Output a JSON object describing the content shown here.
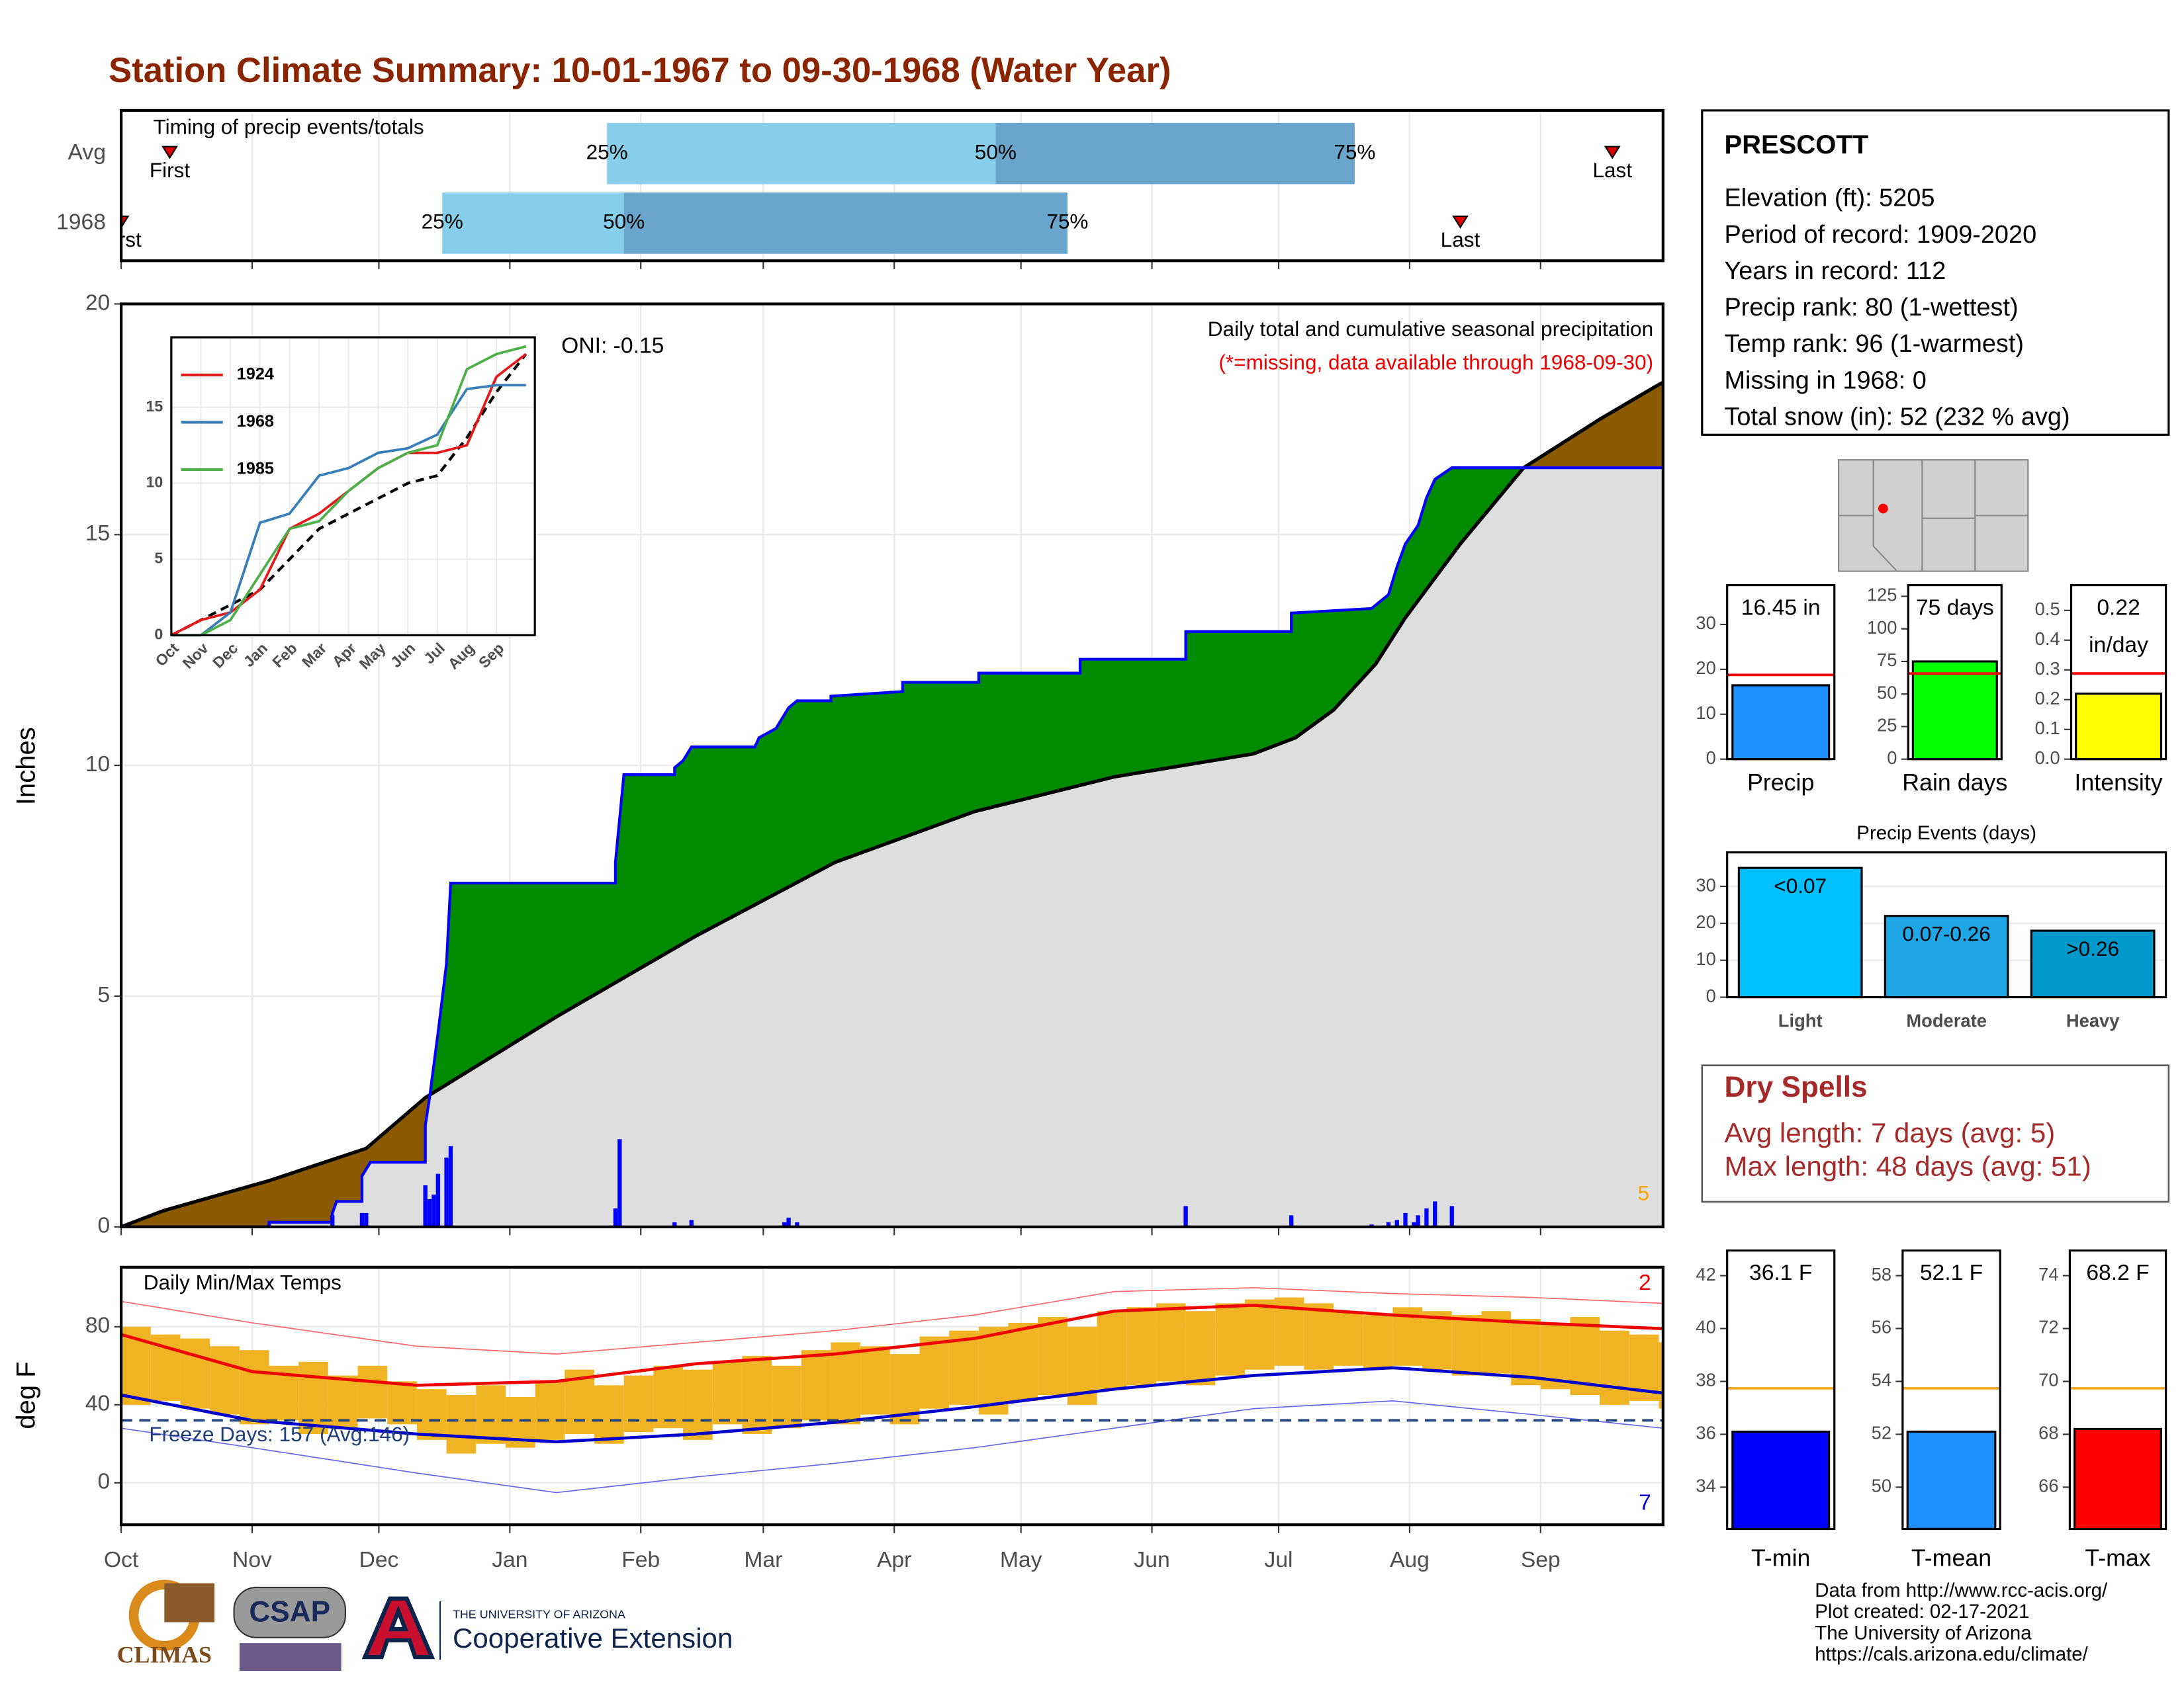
{
  "title": "Station Climate Summary: 10-01-1967 to 09-30-1968 (Water Year)",
  "chart_data": [
    {
      "type": "timing",
      "title": "Timing of precip events/totals",
      "xlim": [
        0,
        365
      ],
      "rows": [
        {
          "label": "Avg",
          "first": 11.5,
          "p25": 115,
          "p50": 207,
          "p75": 292,
          "last": 353
        },
        {
          "label": "1968",
          "first": 0,
          "p25": 76,
          "p50": 119,
          "p75": 224,
          "last": 317
        }
      ],
      "first_label": "First",
      "last_label": "Last",
      "p25_label": "25%",
      "p50_label": "50%",
      "p75_label": "75%",
      "colors": [
        "#87ceeb",
        "#6aa5cc"
      ],
      "marker_color": "#dd0000"
    },
    {
      "type": "area",
      "ylabel": "Inches",
      "xlim": [
        0,
        365
      ],
      "ylim": [
        0,
        20
      ],
      "yticks": [
        0,
        5,
        10,
        15,
        20
      ],
      "grid": true,
      "subtitle": "Daily total and cumulative seasonal precipitation",
      "note": "(*=missing, data available through 1968-09-30)",
      "oni": "ONI: -0.15",
      "corner_label": "5",
      "observed": {
        "color": "#0000ff",
        "x": [
          0,
          35,
          35,
          50,
          50,
          51,
          57,
          57,
          59,
          72,
          72,
          73,
          74,
          75,
          77,
          78,
          117,
          117,
          119,
          131,
          131,
          133,
          135,
          150,
          151,
          155,
          157,
          158,
          160,
          168,
          168,
          185,
          185,
          203,
          203,
          227,
          227,
          252,
          252,
          277,
          277,
          296,
          300,
          302,
          304,
          307,
          309,
          311,
          315,
          365
        ],
        "values": [
          0,
          0,
          0.1,
          0.1,
          0.3,
          0.55,
          0.55,
          1.1,
          1.4,
          1.4,
          2.2,
          2.8,
          3.5,
          4.2,
          5.7,
          7.45,
          7.45,
          7.9,
          9.8,
          9.8,
          9.95,
          10.1,
          10.4,
          10.4,
          10.6,
          10.8,
          11.1,
          11.25,
          11.4,
          11.4,
          11.5,
          11.6,
          11.8,
          11.8,
          12.0,
          12.0,
          12.3,
          12.3,
          12.9,
          12.9,
          13.3,
          13.4,
          13.7,
          14.3,
          14.8,
          15.2,
          15.8,
          16.2,
          16.45,
          16.45
        ]
      },
      "average": {
        "color": "#000000",
        "x": [
          0,
          10,
          35,
          58,
          72,
          103,
          136,
          169,
          202,
          235,
          268,
          278,
          287,
          297,
          304,
          317,
          332,
          350,
          363,
          365
        ],
        "values": [
          0,
          0.35,
          1.0,
          1.7,
          2.8,
          4.55,
          6.3,
          7.9,
          9.0,
          9.75,
          10.25,
          10.6,
          11.2,
          12.2,
          13.2,
          14.8,
          16.45,
          17.5,
          18.2,
          18.3
        ]
      },
      "daily": {
        "color": "#0000ff",
        "x": [
          35,
          50,
          57,
          58,
          72,
          73,
          74,
          75,
          77,
          78,
          117,
          118,
          131,
          135,
          157,
          158,
          160,
          252,
          277,
          296,
          300,
          302,
          304,
          306,
          307,
          309,
          311,
          315
        ],
        "values": [
          0.05,
          0.25,
          0.3,
          0.3,
          0.9,
          0.6,
          0.7,
          1.15,
          1.5,
          1.75,
          0.4,
          1.9,
          0.1,
          0.15,
          0.1,
          0.2,
          0.1,
          0.45,
          0.25,
          0.05,
          0.1,
          0.15,
          0.3,
          0.1,
          0.25,
          0.4,
          0.55,
          0.45
        ]
      },
      "above_color": "#008b00",
      "below_color": "#8b5a00",
      "base_color": "#dedede",
      "corner_color": "#ffa500",
      "note_color": "#ee0000"
    },
    {
      "type": "line",
      "xlim": [
        0,
        12.3
      ],
      "ylim": [
        0,
        19.6
      ],
      "yticks": [
        0,
        5,
        10,
        15
      ],
      "xticks": [
        {
          "value": 0,
          "label": "Oct"
        },
        {
          "value": 1,
          "label": "Nov"
        },
        {
          "value": 2,
          "label": "Dec"
        },
        {
          "value": 3,
          "label": "Jan"
        },
        {
          "value": 4,
          "label": "Feb"
        },
        {
          "value": 5,
          "label": "Mar"
        },
        {
          "value": 6,
          "label": "Apr"
        },
        {
          "value": 7,
          "label": "May"
        },
        {
          "value": 8,
          "label": "Jun"
        },
        {
          "value": 9,
          "label": "Jul"
        },
        {
          "value": 10,
          "label": "Aug"
        },
        {
          "value": 11,
          "label": "Sep"
        }
      ],
      "x": [
        0,
        1,
        2,
        3,
        4,
        5,
        6,
        7,
        8,
        9,
        10,
        11,
        12
      ],
      "series": [
        {
          "name": "1924",
          "color": "#e41a1c",
          "values": [
            0,
            1,
            1.5,
            3,
            7,
            8,
            9.5,
            11,
            12,
            12,
            12.5,
            17,
            18.5
          ]
        },
        {
          "name": "1968",
          "color": "#377eb8",
          "values": [
            0,
            0,
            1.5,
            7.4,
            8,
            10.5,
            11,
            12,
            12.3,
            13.2,
            16.2,
            16.45,
            16.45
          ]
        },
        {
          "name": "1985",
          "color": "#4daf4a",
          "values": [
            0,
            0,
            1,
            4,
            7,
            7.5,
            9.5,
            11,
            12,
            12.5,
            17.5,
            18.5,
            19
          ]
        }
      ],
      "average_values": [
        0,
        1,
        2,
        3,
        5,
        7,
        8,
        9,
        10,
        10.5,
        13,
        16,
        18.5
      ],
      "average_color": "#000000"
    },
    {
      "type": "temperature",
      "title": "Daily Min/Max Temps",
      "ylabel": "deg F",
      "xlim": [
        0,
        365
      ],
      "ylim": [
        -21.5,
        110.5
      ],
      "yticks": [
        0,
        40,
        80
      ],
      "xticks": [
        {
          "value": 0,
          "label": "Oct"
        },
        {
          "value": 31,
          "label": "Nov"
        },
        {
          "value": 61,
          "label": "Dec"
        },
        {
          "value": 92,
          "label": "Jan"
        },
        {
          "value": 123,
          "label": "Feb"
        },
        {
          "value": 152,
          "label": "Mar"
        },
        {
          "value": 183,
          "label": "Apr"
        },
        {
          "value": 213,
          "label": "May"
        },
        {
          "value": 244,
          "label": "Jun"
        },
        {
          "value": 274,
          "label": "Jul"
        },
        {
          "value": 305,
          "label": "Aug"
        },
        {
          "value": 336,
          "label": "Sep"
        }
      ],
      "freeze_label": "Freeze Days: 157 (Avg:146)",
      "freeze_line": 32,
      "max_corner": "2",
      "min_corner": "7",
      "daily": {
        "color": "#f0b323",
        "x": [
          0,
          7,
          14,
          21,
          28,
          35,
          42,
          49,
          56,
          63,
          70,
          77,
          84,
          91,
          98,
          105,
          112,
          119,
          126,
          133,
          140,
          147,
          154,
          161,
          168,
          175,
          182,
          189,
          196,
          203,
          210,
          217,
          224,
          231,
          238,
          245,
          252,
          259,
          266,
          273,
          280,
          287,
          294,
          301,
          308,
          315,
          322,
          329,
          336,
          343,
          350,
          357,
          364
        ],
        "min": [
          40,
          42,
          38,
          35,
          30,
          32,
          25,
          28,
          33,
          30,
          22,
          15,
          20,
          18,
          22,
          25,
          20,
          26,
          28,
          22,
          30,
          25,
          28,
          32,
          30,
          35,
          30,
          38,
          40,
          35,
          42,
          45,
          40,
          48,
          50,
          52,
          50,
          55,
          58,
          60,
          58,
          60,
          58,
          60,
          58,
          55,
          56,
          50,
          48,
          45,
          40,
          42,
          38
        ],
        "max": [
          80,
          76,
          74,
          70,
          68,
          60,
          62,
          55,
          60,
          52,
          48,
          45,
          50,
          44,
          52,
          58,
          50,
          55,
          60,
          58,
          62,
          65,
          60,
          68,
          72,
          70,
          66,
          75,
          78,
          80,
          82,
          85,
          80,
          88,
          90,
          92,
          88,
          92,
          94,
          95,
          92,
          88,
          86,
          90,
          88,
          86,
          88,
          84,
          82,
          85,
          78,
          76,
          72
        ]
      },
      "curve_x": [
        0,
        31,
        70,
        103,
        136,
        169,
        202,
        235,
        268,
        301,
        334,
        365
      ],
      "avg_max": {
        "color": "#ee0000",
        "values": [
          76,
          57,
          50,
          52,
          61,
          66,
          74,
          88,
          91,
          86,
          82,
          79
        ]
      },
      "avg_min": {
        "color": "#0000cc",
        "values": [
          45,
          32,
          25,
          21,
          25,
          31,
          39,
          48,
          55,
          59,
          54,
          46
        ]
      },
      "record_max": {
        "color": "#ff6666",
        "values": [
          93,
          82,
          70,
          66,
          72,
          78,
          86,
          98,
          100,
          97,
          95,
          92
        ]
      },
      "record_min": {
        "color": "#6666ee",
        "values": [
          28,
          18,
          5,
          -5,
          3,
          10,
          18,
          28,
          38,
          42,
          35,
          28
        ]
      },
      "freeze_color": "#1f3f7a"
    },
    {
      "type": "bar",
      "categories": [
        "Precip"
      ],
      "values": [
        16.45
      ],
      "value_labels": [
        "16.45 in"
      ],
      "color": "#1e90ff",
      "reference": 18.75,
      "reference_color": "#ff0000",
      "ylim": [
        0,
        38.75
      ],
      "yticks": [
        0,
        10,
        20,
        30
      ]
    },
    {
      "type": "bar",
      "categories": [
        "Rain days"
      ],
      "values": [
        75
      ],
      "value_labels": [
        "75 days"
      ],
      "color": "#00ff00",
      "reference": 65.7,
      "reference_color": "#ff0000",
      "ylim": [
        0,
        133.6
      ],
      "yticks": [
        0,
        25,
        50,
        75,
        100,
        125
      ]
    },
    {
      "type": "bar",
      "categories": [
        "Intensity"
      ],
      "values": [
        0.22
      ],
      "value_labels": [
        "0.22"
      ],
      "unit_label": "in/day",
      "color": "#ffff00",
      "reference": 0.288,
      "reference_color": "#ff0000",
      "ylim": [
        0,
        0.585
      ],
      "yticks": [
        {
          "value": 0,
          "label": "0.0"
        },
        0.1,
        0.2,
        0.3,
        0.4,
        0.5
      ]
    },
    {
      "type": "bar",
      "title": "Precip Events (days)",
      "categories": [
        "Light",
        "Moderate",
        "Heavy"
      ],
      "values": [
        35,
        22,
        18
      ],
      "bar_labels": [
        "<0.07",
        "0.07-0.26",
        ">0.26"
      ],
      "colors": [
        "#00bfff",
        "#1ea6e6",
        "#0099cc"
      ],
      "ylim": [
        0,
        39.2
      ],
      "yticks": [
        0,
        10,
        20,
        30
      ],
      "grid": true
    },
    {
      "type": "bar",
      "categories": [
        "T-min"
      ],
      "values": [
        36.1
      ],
      "value_labels": [
        "36.1 F"
      ],
      "color": "#0000ff",
      "reference": 37.74,
      "reference_color": "#f5a623",
      "ylim": [
        32.42,
        42.95
      ],
      "yticks": [
        34,
        36,
        38,
        40,
        42
      ]
    },
    {
      "type": "bar",
      "categories": [
        "T-mean"
      ],
      "values": [
        52.1
      ],
      "value_labels": [
        "52.1 F"
      ],
      "color": "#1e90ff",
      "reference": 53.74,
      "reference_color": "#f5a623",
      "ylim": [
        48.42,
        58.95
      ],
      "yticks": [
        50,
        52,
        54,
        56,
        58
      ]
    },
    {
      "type": "bar",
      "categories": [
        "T-max"
      ],
      "values": [
        68.2
      ],
      "value_labels": [
        "68.2 F"
      ],
      "color": "#ff0000",
      "reference": 69.74,
      "reference_color": "#f5a623",
      "ylim": [
        64.42,
        74.95
      ],
      "yticks": [
        66,
        68,
        70,
        72,
        74
      ]
    }
  ],
  "station": {
    "name": "PRESCOTT",
    "lines": [
      "Elevation (ft): 5205",
      "Period of record: 1909-2020",
      "Years in record: 112",
      "Precip rank: 80 (1-wettest)",
      "Temp rank: 96 (1-warmest)",
      "Missing in 1968: 0",
      "Total snow (in): 52 (232 % avg)"
    ]
  },
  "dry_spells": {
    "title": "Dry Spells",
    "lines": [
      "Avg length: 7 days (avg: 5)",
      "Max length: 48 days (avg: 51)"
    ]
  },
  "footer": {
    "climas": "CLIMAS",
    "csap": "CSAP",
    "university": "THE UNIVERSITY OF ARIZONA",
    "extension": "Cooperative Extension",
    "credits": [
      "Data from http://www.rcc-acis.org/",
      "Plot created: 02-17-2021",
      "The University of Arizona",
      "https://cals.arizona.edu/climate/"
    ]
  }
}
